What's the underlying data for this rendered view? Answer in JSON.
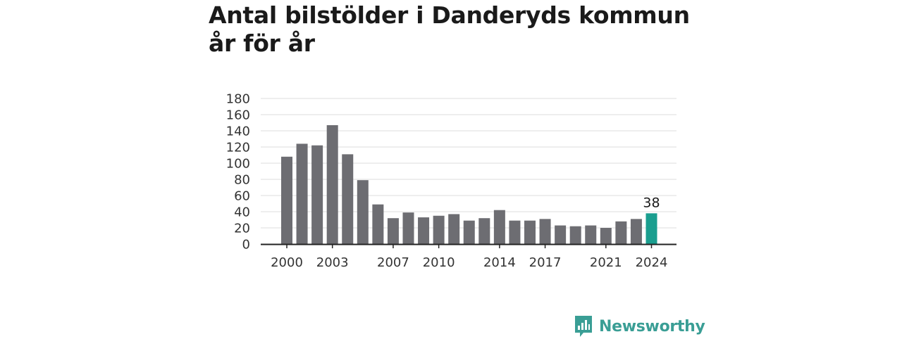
{
  "colors": {
    "bar": "#6d6d72",
    "highlight": "#1a9e8f",
    "grid": "#dddddd",
    "axis": "#222222",
    "brand": "#3a9e95"
  },
  "logo": {
    "text": "Newsworthy",
    "icon": "newsworthy-logo-icon"
  },
  "chart_data": {
    "type": "bar",
    "title": "Antal bilstölder i Danderyds kommun år för år",
    "xlabel": "",
    "ylabel": "",
    "categories": [
      "2000",
      "2001",
      "2002",
      "2003",
      "2004",
      "2005",
      "2006",
      "2007",
      "2008",
      "2009",
      "2010",
      "2011",
      "2012",
      "2013",
      "2014",
      "2015",
      "2016",
      "2017",
      "2018",
      "2019",
      "2020",
      "2021",
      "2022",
      "2023",
      "2024"
    ],
    "values": [
      108,
      124,
      122,
      147,
      111,
      79,
      49,
      32,
      39,
      33,
      35,
      37,
      29,
      32,
      42,
      29,
      29,
      31,
      23,
      22,
      23,
      20,
      28,
      31,
      38
    ],
    "x_tick_labels": [
      "2000",
      "2003",
      "2007",
      "2010",
      "2014",
      "2017",
      "2021",
      "2024"
    ],
    "y_ticks": [
      0,
      20,
      40,
      60,
      80,
      100,
      120,
      140,
      160,
      180
    ],
    "ylim": [
      0,
      180
    ],
    "grid": true,
    "highlight": {
      "category": "2024",
      "label": "38"
    }
  }
}
